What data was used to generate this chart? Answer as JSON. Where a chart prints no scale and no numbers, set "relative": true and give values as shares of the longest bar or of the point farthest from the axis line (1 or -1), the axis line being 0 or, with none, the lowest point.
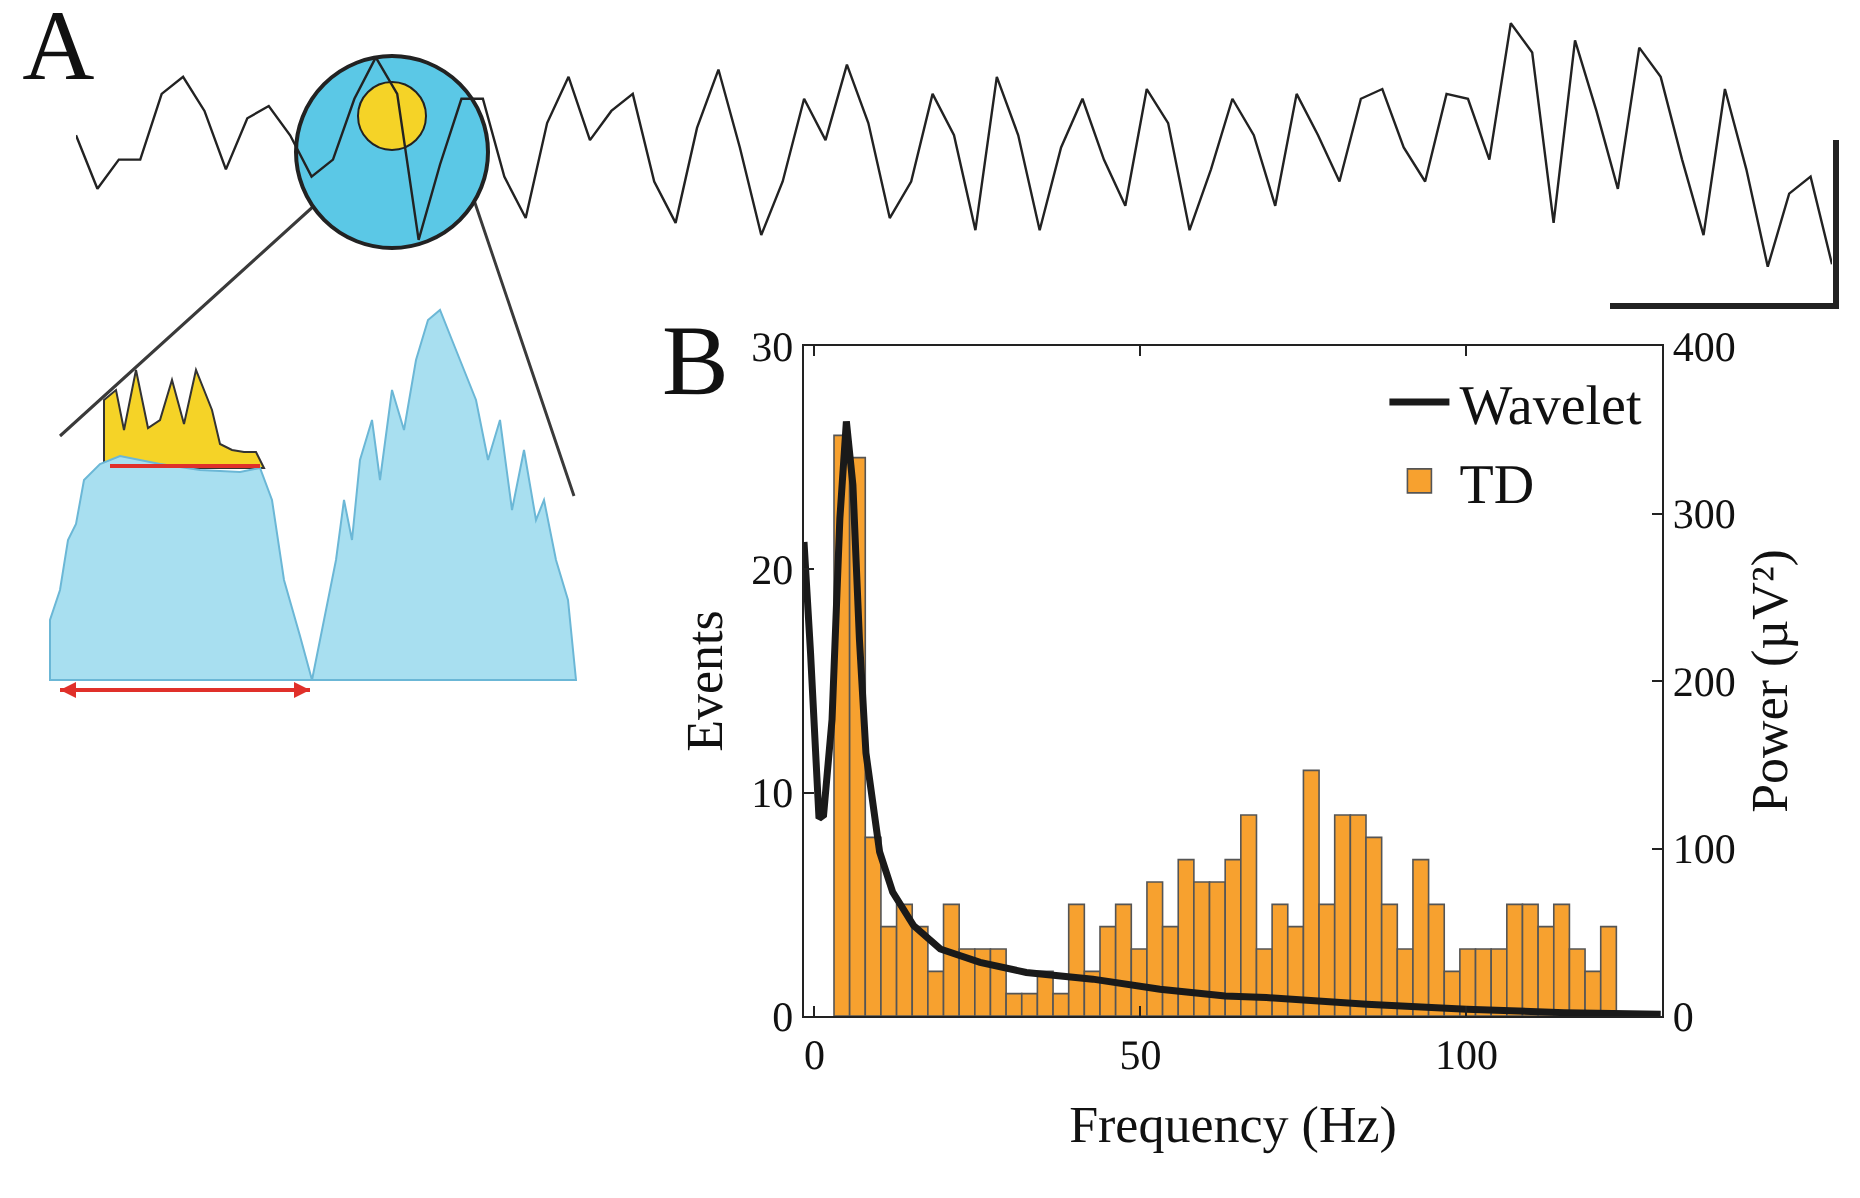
{
  "chart_data": [
    {
      "type": "line",
      "title": "A",
      "relative": true,
      "categories": [
        null,
        null,
        null,
        null,
        null,
        null,
        null,
        null,
        null,
        null,
        null,
        null,
        null,
        null,
        null,
        null,
        null,
        null,
        null,
        null,
        null,
        null,
        null,
        null,
        null,
        null,
        null,
        null,
        null,
        null,
        null,
        null,
        null,
        null,
        null,
        null,
        null,
        null,
        null,
        null,
        null,
        null,
        null,
        null,
        null,
        null,
        null,
        null,
        null,
        null,
        null,
        null,
        null,
        null,
        null,
        null,
        null,
        null,
        null,
        null,
        null,
        null,
        null,
        null,
        null,
        null,
        null,
        null,
        null,
        null,
        null,
        null,
        null,
        null,
        null,
        null,
        null,
        null,
        null,
        null,
        null,
        null,
        null
      ],
      "series": [
        {
          "color": "#222222",
          "values": [
            0.54,
            0.32,
            0.44,
            0.44,
            0.71,
            0.78,
            0.64,
            0.4,
            0.61,
            0.66,
            0.54,
            0.37,
            0.44,
            0.69,
            0.86,
            0.71,
            0.11,
            0.42,
            0.69,
            0.69,
            0.37,
            0.2,
            0.59,
            0.78,
            0.52,
            0.64,
            0.71,
            0.35,
            0.18,
            0.57,
            0.81,
            0.49,
            0.13,
            0.35,
            0.69,
            0.52,
            0.83,
            0.59,
            0.2,
            0.35,
            0.71,
            0.54,
            0.15,
            0.78,
            0.54,
            0.15,
            0.49,
            0.69,
            0.44,
            0.25,
            0.73,
            0.59,
            0.15,
            0.4,
            0.69,
            0.54,
            0.25,
            0.71,
            0.54,
            0.35,
            0.69,
            0.73,
            0.49,
            0.35,
            0.71,
            0.69,
            0.44,
            1,
            0.88,
            0.18,
            0.93,
            0.64,
            0.32,
            0.9,
            0.78,
            0.44,
            0.13,
            0.73,
            0.4,
            0,
            0.3,
            0.37,
            0.01
          ]
        }
      ]
    },
    {
      "type": "histogram",
      "title": "B",
      "xlabel": "Frequency (Hz)",
      "ylabel": "Events",
      "y2label": "Power (µV²)",
      "bins": [
        3,
        5.4,
        7.8,
        10.2,
        12.6,
        15,
        17.4,
        19.8,
        22.2,
        24.6,
        27,
        29.4,
        31.8,
        34.2,
        36.6,
        39,
        41.4,
        43.8,
        46.2,
        48.6,
        51,
        53.4,
        55.8,
        58.2,
        60.6,
        63,
        65.4,
        67.8,
        70.2,
        72.6,
        75,
        77.4,
        79.8,
        82.2,
        84.6,
        87,
        89.4,
        91.8,
        94.2,
        96.6,
        99,
        101.4,
        103.8,
        106.2,
        108.6,
        111,
        113.4,
        115.8,
        118.2,
        120.6,
        123
      ],
      "xlim": [
        -1.6,
        130
      ],
      "xticks": [
        0,
        50,
        100
      ],
      "ylim": [
        0,
        30
      ],
      "yticks": [
        0,
        10,
        20,
        30
      ],
      "y2lim": [
        0,
        400
      ],
      "y2ticks": [
        0,
        100,
        200,
        300,
        400
      ],
      "legend": "top right",
      "series": [
        {
          "name": "Wavelet",
          "type": "line",
          "axis": "y2",
          "color": "#1a1a1a",
          "x": [
            -1.6,
            -0.6,
            0.7,
            1.4,
            2.7,
            3.9,
            4.9,
            5.9,
            6.9,
            7.9,
            10,
            12,
            15.2,
            19.3,
            25.4,
            32.5,
            42.7,
            53,
            63,
            69.3,
            84.7,
            100,
            115,
            129.8
          ],
          "values": [
            283,
            217,
            118,
            120,
            177,
            297,
            355,
            317,
            225,
            157,
            98,
            74,
            54,
            40,
            32,
            26,
            22,
            16,
            12,
            11,
            7,
            4,
            2,
            1
          ]
        },
        {
          "name": "TD",
          "type": "histogram",
          "color": "#f7a12f",
          "values": [
            26,
            25,
            8,
            4,
            5,
            4,
            2,
            5,
            3,
            3,
            3,
            1,
            1,
            2,
            1,
            5,
            2,
            4,
            5,
            3,
            6,
            4,
            7,
            6,
            6,
            7,
            9,
            3,
            5,
            4,
            11,
            5,
            9,
            9,
            8,
            5,
            3,
            7,
            5,
            2,
            3,
            3,
            3,
            5,
            5,
            4,
            5,
            3,
            2,
            4
          ]
        }
      ]
    }
  ]
}
